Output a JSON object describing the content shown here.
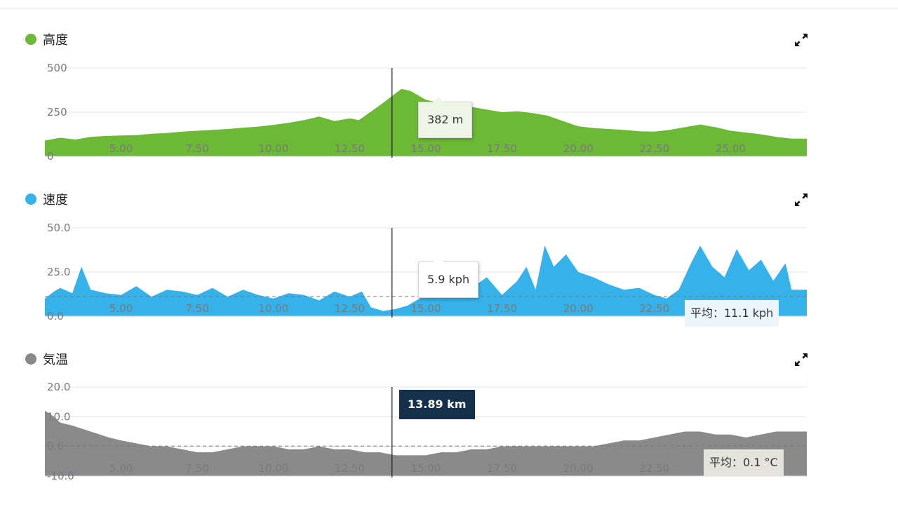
{
  "sections": [
    {
      "id": "elevation",
      "title": "高度",
      "color": "#6bb934",
      "tooltip": "382 m",
      "avg": null
    },
    {
      "id": "speed",
      "title": "速度",
      "color": "#35b2ea",
      "tooltip": "5.9 kph",
      "avg": "平均：11.1 kph"
    },
    {
      "id": "temperature",
      "title": "気温",
      "color": "#8a8a8a",
      "tooltip": null,
      "cursor_label": "13.89 km",
      "avg": "平均：0.1 °C"
    }
  ],
  "icons": {
    "expand": "expand-arrows-icon"
  },
  "chart_data": [
    {
      "type": "area",
      "series": [
        {
          "x": [
            2.5,
            3,
            3.5,
            4,
            4.5,
            5,
            5.5,
            6,
            6.5,
            7,
            7.5,
            8,
            8.5,
            9,
            9.5,
            10,
            10.5,
            11,
            11.5,
            12,
            12.5,
            12.8,
            13.5,
            14.2,
            14.5,
            15,
            15.5,
            16,
            16.5,
            17,
            17.5,
            18,
            18.5,
            19,
            19.5,
            20,
            20.5,
            21,
            21.5,
            22,
            22.5,
            23,
            23.5,
            24,
            24.5,
            25,
            25.5,
            26,
            26.5,
            27
          ],
          "values": [
            90,
            105,
            95,
            110,
            115,
            118,
            120,
            128,
            132,
            140,
            145,
            150,
            155,
            162,
            168,
            178,
            190,
            205,
            225,
            200,
            215,
            205,
            290,
            382,
            370,
            320,
            300,
            290,
            280,
            265,
            250,
            255,
            245,
            230,
            200,
            170,
            160,
            155,
            150,
            142,
            140,
            150,
            165,
            180,
            165,
            145,
            135,
            125,
            110,
            100
          ]
        }
      ],
      "xticks": [
        "5.00",
        "7.50",
        "10.00",
        "12.50",
        "15.00",
        "17.50",
        "20.00",
        "22.50",
        "25.00"
      ],
      "yticks": [
        "500",
        "250",
        "0"
      ],
      "xlim": [
        2.5,
        27.5
      ],
      "ylim": [
        0,
        500
      ],
      "grid": true
    },
    {
      "type": "area",
      "series": [
        {
          "x": [
            2.5,
            2.8,
            3,
            3.4,
            3.7,
            4,
            4.5,
            5,
            5.5,
            6,
            6.5,
            7,
            7.5,
            8,
            8.5,
            9,
            9.5,
            10,
            10.5,
            11,
            11.5,
            12,
            12.5,
            12.9,
            13.2,
            13.6,
            14,
            14.4,
            14.8,
            15.2,
            15.6,
            16,
            16.5,
            17,
            17.5,
            18,
            18.3,
            18.6,
            18.9,
            19.2,
            19.6,
            20,
            20.5,
            21,
            21.5,
            22,
            22.5,
            22.9,
            23.3,
            23.7,
            24,
            24.4,
            24.8,
            25.2,
            25.6,
            26,
            26.4,
            26.8,
            27
          ],
          "values": [
            10,
            14,
            16,
            13,
            28,
            15,
            13,
            12,
            17,
            11,
            15,
            14,
            12,
            16,
            11,
            15,
            12,
            10,
            13,
            12,
            9,
            14,
            11,
            14,
            5,
            3,
            4,
            6,
            10,
            18,
            25,
            20,
            16,
            22,
            12,
            20,
            28,
            15,
            40,
            28,
            35,
            25,
            22,
            18,
            15,
            16,
            12,
            10,
            15,
            30,
            40,
            28,
            22,
            38,
            26,
            32,
            20,
            30,
            15
          ],
          "avg": 11.1
        }
      ],
      "xticks": [
        "5.00",
        "7.50",
        "10.00",
        "12.50",
        "15.00",
        "17.50",
        "20.00",
        "22.50",
        "25.00"
      ],
      "yticks": [
        "50.0",
        "25.0",
        "0.0"
      ],
      "xlim": [
        2.5,
        27.5
      ],
      "ylim": [
        0,
        50
      ],
      "grid": true
    },
    {
      "type": "area",
      "series": [
        {
          "x": [
            2.5,
            2.8,
            3,
            3.4,
            4,
            4.6,
            5,
            5.5,
            6,
            6.5,
            7,
            7.5,
            8,
            8.5,
            9,
            9.5,
            10,
            10.5,
            11,
            11.5,
            12,
            12.5,
            13,
            13.5,
            14,
            14.5,
            15,
            15.5,
            16,
            16.5,
            17,
            17.5,
            18,
            18.5,
            19,
            19.5,
            20,
            20.5,
            21,
            21.5,
            22,
            22.5,
            23,
            23.5,
            24,
            24.5,
            25,
            25.5,
            26,
            26.5,
            27
          ],
          "values": [
            12,
            10,
            8,
            7,
            5,
            3,
            2,
            1,
            0,
            0,
            -1,
            -2,
            -2,
            -1,
            0,
            0,
            0,
            -1,
            -1,
            0,
            -1,
            -1,
            -2,
            -2,
            -3,
            -3,
            -3,
            -2,
            -2,
            -1,
            -1,
            0,
            0,
            0,
            0,
            0,
            0,
            0,
            1,
            2,
            2,
            3,
            4,
            5,
            5,
            4,
            4,
            3,
            4,
            5,
            5
          ],
          "avg": 0.1
        }
      ],
      "xticks": [
        "5.00",
        "7.50",
        "10.00",
        "12.50",
        "15.00",
        "17.50",
        "20.00",
        "22.50",
        "25.00"
      ],
      "yticks": [
        "20.0",
        "10.0",
        "0.0",
        "-10.0"
      ],
      "xlim": [
        2.5,
        27.5
      ],
      "ylim": [
        -10,
        20
      ],
      "grid": true
    }
  ]
}
